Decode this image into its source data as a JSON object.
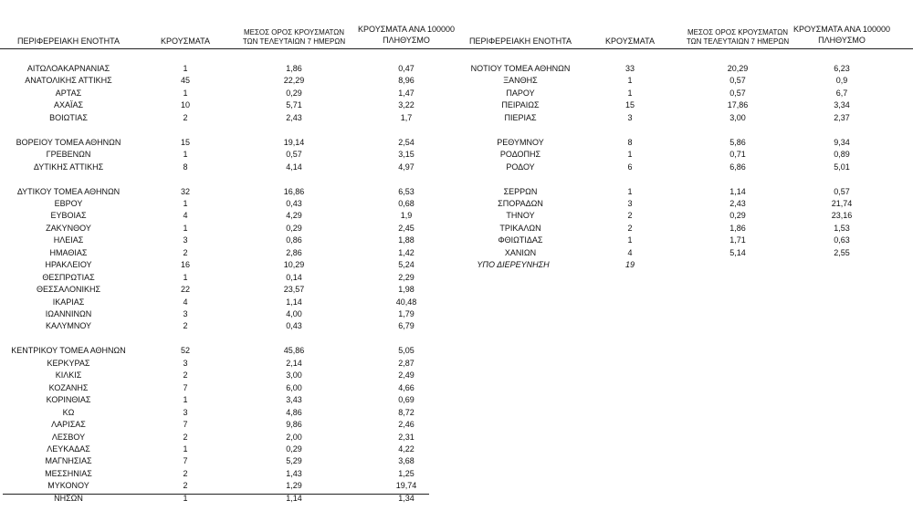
{
  "left": {
    "headers": [
      [
        "ΠΕΡΙΦΕΡΕΙΑΚΗ ΕΝΟΤΗΤΑ"
      ],
      [
        "ΚΡΟΥΣΜΑΤΑ"
      ],
      [
        "ΜΕΣΟΣ ΟΡΟΣ ΚΡΟΥΣΜΑΤΩΝ",
        "ΤΩΝ ΤΕΛΕΥΤΑΙΩΝ 7 ΗΜΕΡΩΝ"
      ],
      [
        "ΚΡΟΥΣΜΑΤΑ ΑΝΑ 100000",
        "ΠΛΗΘΥΣΜΟ"
      ]
    ],
    "groups": [
      [
        [
          "ΑΙΤΩΛΟΑΚΑΡΝΑΝΙΑΣ",
          "1",
          "1,86",
          "0,47"
        ],
        [
          "ΑΝΑΤΟΛΙΚΗΣ ΑΤΤΙΚΗΣ",
          "45",
          "22,29",
          "8,96"
        ],
        [
          "ΑΡΤΑΣ",
          "1",
          "0,29",
          "1,47"
        ],
        [
          "ΑΧΑΪΑΣ",
          "10",
          "5,71",
          "3,22"
        ],
        [
          "ΒΟΙΩΤΙΑΣ",
          "2",
          "2,43",
          "1,7"
        ]
      ],
      [
        [
          "ΒΟΡΕΙΟΥ ΤΟΜΕΑ ΑΘΗΝΩΝ",
          "15",
          "19,14",
          "2,54"
        ],
        [
          "ΓΡΕΒΕΝΩΝ",
          "1",
          "0,57",
          "3,15"
        ],
        [
          "ΔΥΤΙΚΗΣ ΑΤΤΙΚΗΣ",
          "8",
          "4,14",
          "4,97"
        ]
      ],
      [
        [
          "ΔΥΤΙΚΟΥ ΤΟΜΕΑ ΑΘΗΝΩΝ",
          "32",
          "16,86",
          "6,53"
        ],
        [
          "ΕΒΡΟΥ",
          "1",
          "0,43",
          "0,68"
        ],
        [
          "ΕΥΒΟΙΑΣ",
          "4",
          "4,29",
          "1,9"
        ],
        [
          "ΖΑΚΥΝΘΟΥ",
          "1",
          "0,29",
          "2,45"
        ],
        [
          "ΗΛΕΙΑΣ",
          "3",
          "0,86",
          "1,88"
        ],
        [
          "ΗΜΑΘΙΑΣ",
          "2",
          "2,86",
          "1,42"
        ],
        [
          "ΗΡΑΚΛΕΙΟΥ",
          "16",
          "10,29",
          "5,24"
        ],
        [
          "ΘΕΣΠΡΩΤΙΑΣ",
          "1",
          "0,14",
          "2,29"
        ],
        [
          "ΘΕΣΣΑΛΟΝΙΚΗΣ",
          "22",
          "23,57",
          "1,98"
        ],
        [
          "ΙΚΑΡΙΑΣ",
          "4",
          "1,14",
          "40,48"
        ],
        [
          "ΙΩΑΝΝΙΝΩΝ",
          "3",
          "4,00",
          "1,79"
        ],
        [
          "ΚΑΛΥΜΝΟΥ",
          "2",
          "0,43",
          "6,79"
        ]
      ],
      [
        [
          "ΚΕΝΤΡΙΚΟΥ ΤΟΜΕΑ ΑΘΗΝΩΝ",
          "52",
          "45,86",
          "5,05"
        ],
        [
          "ΚΕΡΚΥΡΑΣ",
          "3",
          "2,14",
          "2,87"
        ],
        [
          "ΚΙΛΚΙΣ",
          "2",
          "3,00",
          "2,49"
        ],
        [
          "ΚΟΖΑΝΗΣ",
          "7",
          "6,00",
          "4,66"
        ],
        [
          "ΚΟΡΙΝΘΙΑΣ",
          "1",
          "3,43",
          "0,69"
        ],
        [
          "ΚΩ",
          "3",
          "4,86",
          "8,72"
        ],
        [
          "ΛΑΡΙΣΑΣ",
          "7",
          "9,86",
          "2,46"
        ],
        [
          "ΛΕΣΒΟΥ",
          "2",
          "2,00",
          "2,31"
        ],
        [
          "ΛΕΥΚΑΔΑΣ",
          "1",
          "0,29",
          "4,22"
        ],
        [
          "ΜΑΓΝΗΣΙΑΣ",
          "7",
          "5,29",
          "3,68"
        ],
        [
          "ΜΕΣΣΗΝΙΑΣ",
          "2",
          "1,43",
          "1,25"
        ],
        [
          "ΜΥΚΟΝΟΥ",
          "2",
          "1,29",
          "19,74"
        ],
        [
          "ΝΗΣΩΝ",
          "1",
          "1,14",
          "1,34"
        ]
      ]
    ]
  },
  "right": {
    "headers": [
      [
        "ΠΕΡΙΦΕΡΕΙΑΚΗ ΕΝΟΤΗΤΑ"
      ],
      [
        "ΚΡΟΥΣΜΑΤΑ"
      ],
      [
        "ΜΕΣΟΣ ΟΡΟΣ ΚΡΟΥΣΜΑΤΩΝ",
        "ΤΩΝ ΤΕΛΕΥΤΑΙΩΝ 7 ΗΜΕΡΩΝ"
      ],
      [
        "ΚΡΟΥΣΜΑΤΑ ΑΝΑ 100000",
        "ΠΛΗΘΥΣΜΟ"
      ]
    ],
    "groups": [
      [
        [
          "ΝΟΤΙΟΥ ΤΟΜΕΑ ΑΘΗΝΩΝ",
          "33",
          "20,29",
          "6,23"
        ],
        [
          "ΞΑΝΘΗΣ",
          "1",
          "0,57",
          "0,9"
        ],
        [
          "ΠΑΡΟΥ",
          "1",
          "0,57",
          "6,7"
        ],
        [
          "ΠΕΙΡΑΙΩΣ",
          "15",
          "17,86",
          "3,34"
        ],
        [
          "ΠΙΕΡΙΑΣ",
          "3",
          "3,00",
          "2,37"
        ]
      ],
      [
        [
          "ΡΕΘΥΜΝΟΥ",
          "8",
          "5,86",
          "9,34"
        ],
        [
          "ΡΟΔΟΠΗΣ",
          "1",
          "0,71",
          "0,89"
        ],
        [
          "ΡΟΔΟΥ",
          "6",
          "6,86",
          "5,01"
        ]
      ],
      [
        [
          "ΣΕΡΡΩΝ",
          "1",
          "1,14",
          "0,57"
        ],
        [
          "ΣΠΟΡΑΔΩΝ",
          "3",
          "2,43",
          "21,74"
        ],
        [
          "ΤΗΝΟΥ",
          "2",
          "0,29",
          "23,16"
        ],
        [
          "ΤΡΙΚΑΛΩΝ",
          "2",
          "1,86",
          "1,53"
        ],
        [
          "ΦΘΙΩΤΙΔΑΣ",
          "1",
          "1,71",
          "0,63"
        ],
        [
          "ΧΑΝΙΩΝ",
          "4",
          "5,14",
          "2,55"
        ]
      ]
    ],
    "pending_row": [
      "ΥΠΟ ΔΙΕΡΕΥΝΗΣΗ",
      "19"
    ]
  }
}
